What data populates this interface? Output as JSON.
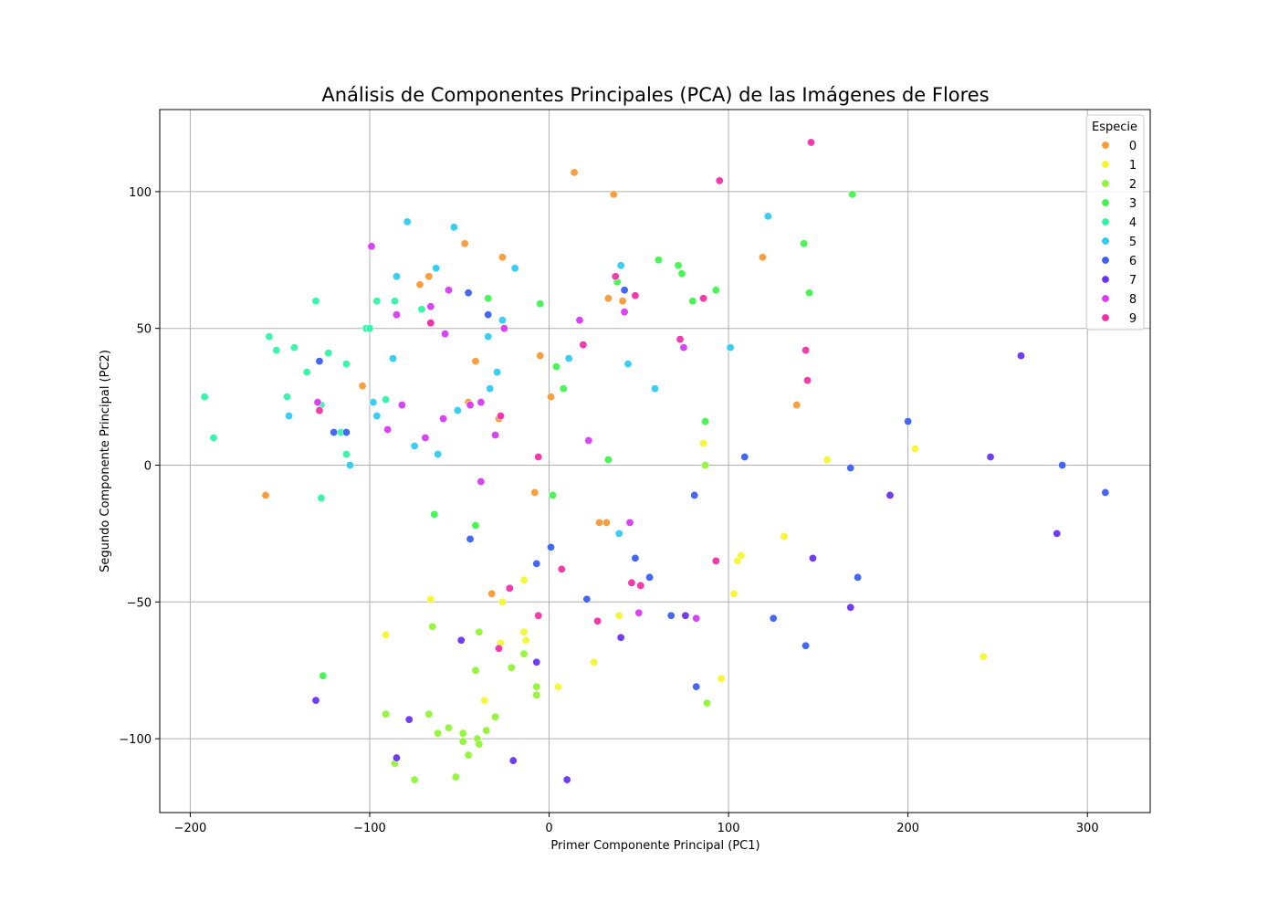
{
  "chart_data": {
    "type": "scatter",
    "title": "Análisis de Componentes Principales (PCA) de las Imágenes de Flores",
    "xlabel": "Primer Componente Principal (PC1)",
    "ylabel": "Segundo Componente Principal (PC2)",
    "xlim": [
      -217,
      335
    ],
    "ylim": [
      -127,
      130
    ],
    "xticks": [
      -200,
      -100,
      0,
      100,
      200,
      300
    ],
    "yticks": [
      -100,
      -50,
      0,
      50,
      100
    ],
    "xtick_labels": [
      "−200",
      "−100",
      "0",
      "100",
      "200",
      "300"
    ],
    "ytick_labels": [
      "−100",
      "−50",
      "0",
      "50",
      "100"
    ],
    "grid": true,
    "legend": {
      "title": "Especie",
      "placement": "top-right"
    },
    "series": [
      {
        "name": "0",
        "color": "#fb9a34",
        "points": [
          [
            14,
            107
          ],
          [
            36,
            99
          ],
          [
            -47,
            81
          ],
          [
            -26,
            76
          ],
          [
            119,
            76
          ],
          [
            -72,
            66
          ],
          [
            -67,
            69
          ],
          [
            33,
            61
          ],
          [
            41,
            60
          ],
          [
            -104,
            29
          ],
          [
            -5,
            40
          ],
          [
            -41,
            38
          ],
          [
            -45,
            23
          ],
          [
            1,
            25
          ],
          [
            -28,
            17
          ],
          [
            138,
            22
          ],
          [
            -158,
            -11
          ],
          [
            -8,
            -10
          ],
          [
            28,
            -21
          ],
          [
            32,
            -21
          ],
          [
            -32,
            -47
          ]
        ]
      },
      {
        "name": "1",
        "color": "#f5f530",
        "points": [
          [
            155,
            2
          ],
          [
            204,
            6
          ],
          [
            86,
            8
          ],
          [
            131,
            -26
          ],
          [
            105,
            -35
          ],
          [
            107,
            -33
          ],
          [
            -66,
            -49
          ],
          [
            -26,
            -50
          ],
          [
            -14,
            -42
          ],
          [
            103,
            -47
          ],
          [
            39,
            -55
          ],
          [
            -14,
            -61
          ],
          [
            -13,
            -64
          ],
          [
            -27,
            -65
          ],
          [
            -91,
            -62
          ],
          [
            25,
            -72
          ],
          [
            5,
            -81
          ],
          [
            96,
            -78
          ],
          [
            -36,
            -86
          ],
          [
            242,
            -70
          ]
        ]
      },
      {
        "name": "2",
        "color": "#8ff534",
        "points": [
          [
            87,
            0
          ],
          [
            88,
            -87
          ],
          [
            -65,
            -59
          ],
          [
            -39,
            -61
          ],
          [
            -14,
            -69
          ],
          [
            -41,
            -75
          ],
          [
            -21,
            -74
          ],
          [
            -7,
            -81
          ],
          [
            -7,
            -84
          ],
          [
            -91,
            -91
          ],
          [
            -67,
            -91
          ],
          [
            -30,
            -92
          ],
          [
            -56,
            -96
          ],
          [
            -62,
            -98
          ],
          [
            -48,
            -98
          ],
          [
            -35,
            -97
          ],
          [
            -48,
            -101
          ],
          [
            -40,
            -100
          ],
          [
            -39,
            -102
          ],
          [
            -45,
            -106
          ],
          [
            -86,
            -109
          ],
          [
            -52,
            -114
          ],
          [
            -75,
            -115
          ]
        ]
      },
      {
        "name": "3",
        "color": "#3ef54c",
        "points": [
          [
            169,
            99
          ],
          [
            142,
            81
          ],
          [
            145,
            63
          ],
          [
            61,
            75
          ],
          [
            72,
            73
          ],
          [
            74,
            70
          ],
          [
            38,
            67
          ],
          [
            93,
            64
          ],
          [
            80,
            60
          ],
          [
            -34,
            61
          ],
          [
            -5,
            59
          ],
          [
            4,
            36
          ],
          [
            8,
            28
          ],
          [
            87,
            16
          ],
          [
            33,
            2
          ],
          [
            2,
            -11
          ],
          [
            -64,
            -18
          ],
          [
            -41,
            -22
          ],
          [
            -126,
            -77
          ]
        ]
      },
      {
        "name": "4",
        "color": "#2ef5a6",
        "points": [
          [
            -130,
            60
          ],
          [
            -96,
            60
          ],
          [
            -86,
            60
          ],
          [
            -71,
            57
          ],
          [
            -102,
            50
          ],
          [
            -100,
            50
          ],
          [
            -156,
            47
          ],
          [
            -152,
            42
          ],
          [
            -142,
            43
          ],
          [
            -123,
            41
          ],
          [
            -135,
            34
          ],
          [
            -113,
            37
          ],
          [
            -91,
            24
          ],
          [
            -146,
            25
          ],
          [
            -192,
            25
          ],
          [
            -127,
            22
          ],
          [
            -116,
            12
          ],
          [
            -187,
            10
          ],
          [
            -113,
            4
          ],
          [
            -127,
            -12
          ]
        ]
      },
      {
        "name": "5",
        "color": "#2ecbf5",
        "points": [
          [
            -79,
            89
          ],
          [
            -53,
            87
          ],
          [
            122,
            91
          ],
          [
            -63,
            72
          ],
          [
            -19,
            72
          ],
          [
            40,
            73
          ],
          [
            -85,
            69
          ],
          [
            -26,
            53
          ],
          [
            -34,
            47
          ],
          [
            -87,
            39
          ],
          [
            11,
            39
          ],
          [
            101,
            43
          ],
          [
            44,
            37
          ],
          [
            -29,
            34
          ],
          [
            -98,
            23
          ],
          [
            -33,
            28
          ],
          [
            59,
            28
          ],
          [
            -96,
            18
          ],
          [
            -51,
            20
          ],
          [
            -145,
            18
          ],
          [
            -75,
            7
          ],
          [
            -62,
            4
          ],
          [
            -111,
            0
          ],
          [
            39,
            -25
          ]
        ]
      },
      {
        "name": "6",
        "color": "#3a60f5",
        "points": [
          [
            -45,
            63
          ],
          [
            -34,
            55
          ],
          [
            42,
            64
          ],
          [
            -128,
            38
          ],
          [
            -120,
            12
          ],
          [
            -113,
            12
          ],
          [
            200,
            16
          ],
          [
            109,
            3
          ],
          [
            168,
            -1
          ],
          [
            286,
            0
          ],
          [
            310,
            -10
          ],
          [
            81,
            -11
          ],
          [
            -44,
            -27
          ],
          [
            1,
            -30
          ],
          [
            -7,
            -36
          ],
          [
            48,
            -34
          ],
          [
            56,
            -41
          ],
          [
            172,
            -41
          ],
          [
            21,
            -49
          ],
          [
            68,
            -55
          ],
          [
            125,
            -56
          ],
          [
            143,
            -66
          ],
          [
            82,
            -81
          ]
        ]
      },
      {
        "name": "7",
        "color": "#6a32f5",
        "points": [
          [
            263,
            40
          ],
          [
            246,
            3
          ],
          [
            190,
            -11
          ],
          [
            283,
            -25
          ],
          [
            147,
            -34
          ],
          [
            168,
            -52
          ],
          [
            76,
            -55
          ],
          [
            40,
            -63
          ],
          [
            -49,
            -64
          ],
          [
            -7,
            -72
          ],
          [
            -130,
            -86
          ],
          [
            -78,
            -93
          ],
          [
            -85,
            -107
          ],
          [
            -20,
            -108
          ],
          [
            10,
            -115
          ]
        ]
      },
      {
        "name": "8",
        "color": "#d83af5",
        "points": [
          [
            -99,
            80
          ],
          [
            -56,
            64
          ],
          [
            -66,
            58
          ],
          [
            -66,
            52
          ],
          [
            -85,
            55
          ],
          [
            -25,
            50
          ],
          [
            17,
            53
          ],
          [
            42,
            56
          ],
          [
            -58,
            48
          ],
          [
            75,
            43
          ],
          [
            -129,
            23
          ],
          [
            -82,
            22
          ],
          [
            -38,
            23
          ],
          [
            -44,
            22
          ],
          [
            -59,
            17
          ],
          [
            -90,
            13
          ],
          [
            -69,
            10
          ],
          [
            -30,
            11
          ],
          [
            22,
            9
          ],
          [
            -38,
            -6
          ],
          [
            45,
            -21
          ],
          [
            50,
            -54
          ],
          [
            82,
            -56
          ]
        ]
      },
      {
        "name": "9",
        "color": "#f52ea8",
        "points": [
          [
            146,
            118
          ],
          [
            95,
            104
          ],
          [
            37,
            69
          ],
          [
            48,
            62
          ],
          [
            86,
            61
          ],
          [
            -66,
            52
          ],
          [
            19,
            44
          ],
          [
            73,
            46
          ],
          [
            143,
            42
          ],
          [
            144,
            31
          ],
          [
            -128,
            20
          ],
          [
            -27,
            18
          ],
          [
            -6,
            3
          ],
          [
            7,
            -38
          ],
          [
            93,
            -35
          ],
          [
            46,
            -43
          ],
          [
            51,
            -44
          ],
          [
            -22,
            -45
          ],
          [
            -6,
            -55
          ],
          [
            27,
            -57
          ],
          [
            -28,
            -67
          ]
        ]
      }
    ]
  }
}
